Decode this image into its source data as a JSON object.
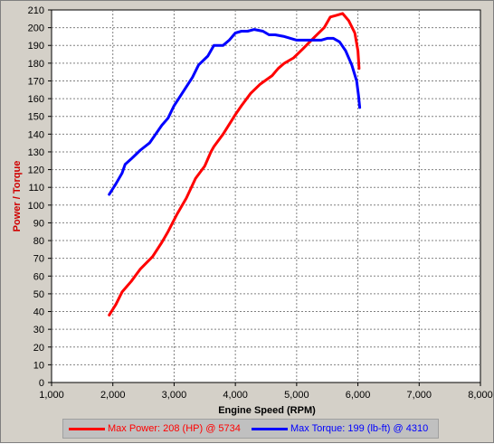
{
  "chart_data": {
    "type": "line",
    "xlabel": "Engine Speed (RPM)",
    "ylabel": "Power / Torque",
    "xlim": [
      1000,
      8000
    ],
    "ylim": [
      0,
      210
    ],
    "x_ticks": [
      "1,000",
      "2,000",
      "3,000",
      "4,000",
      "5,000",
      "6,000",
      "7,000",
      "8,000"
    ],
    "y_ticks": [
      "0",
      "10",
      "20",
      "30",
      "40",
      "50",
      "60",
      "70",
      "80",
      "90",
      "100",
      "110",
      "120",
      "130",
      "140",
      "150",
      "160",
      "170",
      "180",
      "190",
      "200",
      "210"
    ],
    "x_tick_values": [
      1000,
      2000,
      3000,
      4000,
      5000,
      6000,
      7000,
      8000
    ],
    "y_tick_values": [
      0,
      10,
      20,
      30,
      40,
      50,
      60,
      70,
      80,
      90,
      100,
      110,
      120,
      130,
      140,
      150,
      160,
      170,
      180,
      190,
      200,
      210
    ],
    "grid": true,
    "legend_position": "bottom",
    "series": [
      {
        "name": "Max Power: 208 (HP) @ 5734",
        "color": "#ff0000",
        "x": [
          1940,
          2050,
          2150,
          2300,
          2450,
          2650,
          2800,
          2900,
          3050,
          3200,
          3350,
          3500,
          3600,
          3650,
          3800,
          4000,
          4100,
          4250,
          4400,
          4600,
          4700,
          4800,
          4950,
          5100,
          5300,
          5450,
          5550,
          5650,
          5750,
          5850,
          5950,
          6000,
          6020
        ],
        "y": [
          38,
          44,
          51,
          57,
          64,
          71,
          79,
          85,
          95,
          104,
          115,
          122,
          130,
          133,
          140,
          151,
          156,
          163,
          168,
          173,
          177,
          180,
          183,
          188,
          195,
          200,
          206,
          207,
          208,
          204,
          197,
          187,
          177
        ]
      },
      {
        "name": "Max Torque: 199 (lb-ft) @ 4310",
        "color": "#0000ff",
        "x": [
          1940,
          2050,
          2150,
          2200,
          2300,
          2450,
          2600,
          2700,
          2800,
          2900,
          3000,
          3150,
          3300,
          3400,
          3550,
          3650,
          3800,
          3900,
          4000,
          4100,
          4200,
          4310,
          4450,
          4550,
          4650,
          4800,
          4900,
          5000,
          5200,
          5400,
          5500,
          5600,
          5700,
          5800,
          5900,
          5980,
          6010,
          6030
        ],
        "y": [
          106,
          112,
          118,
          123,
          126,
          131,
          135,
          140,
          145,
          149,
          156,
          164,
          172,
          179,
          184,
          190,
          190,
          193,
          197,
          198,
          198,
          199,
          198,
          196,
          196,
          195,
          194,
          193,
          193,
          193,
          194,
          194,
          192,
          187,
          179,
          170,
          162,
          155
        ]
      }
    ]
  }
}
